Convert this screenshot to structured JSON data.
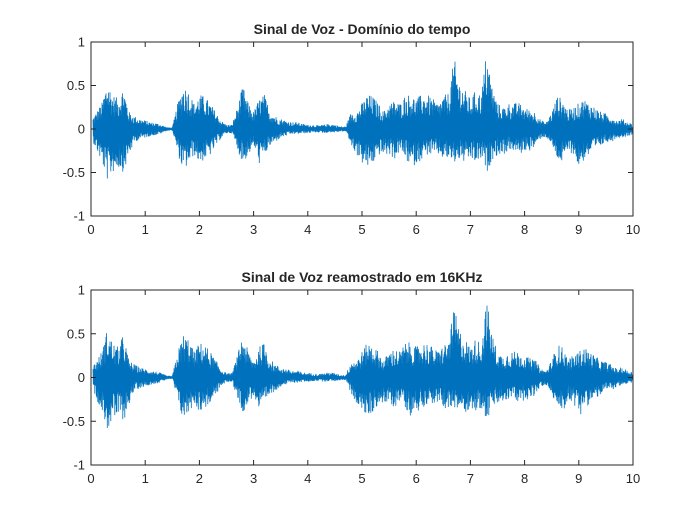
{
  "chart_data": [
    {
      "type": "line",
      "title": "Sinal de Voz - Domínio do tempo",
      "xlabel": "",
      "ylabel": "",
      "xlim": [
        0,
        10
      ],
      "ylim": [
        -1,
        1
      ],
      "xticks": [
        "0",
        "1",
        "2",
        "3",
        "4",
        "5",
        "6",
        "7",
        "8",
        "9",
        "10"
      ],
      "yticks": [
        "1",
        "0.5",
        "0",
        "-0.5",
        "-1"
      ],
      "color": "#0072BD",
      "grid": false,
      "series": [
        {
          "x": [
            0,
            0.1,
            0.2,
            0.3,
            0.4,
            0.5,
            0.6,
            0.7,
            0.8,
            0.9,
            1.0,
            1.1,
            1.2,
            1.3,
            1.4,
            1.5,
            1.6,
            1.7,
            1.8,
            1.9,
            2.0,
            2.1,
            2.2,
            2.3,
            2.4,
            2.5,
            2.6,
            2.7,
            2.8,
            2.9,
            3.0,
            3.1,
            3.2,
            3.3,
            3.4,
            3.5,
            3.6,
            3.7,
            3.8,
            3.9,
            4.0,
            4.1,
            4.2,
            4.3,
            4.4,
            4.5,
            4.6,
            4.7,
            4.8,
            4.9,
            5.0,
            5.1,
            5.2,
            5.3,
            5.4,
            5.5,
            5.6,
            5.7,
            5.8,
            5.9,
            6.0,
            6.1,
            6.2,
            6.3,
            6.4,
            6.5,
            6.6,
            6.7,
            6.8,
            6.9,
            7.0,
            7.1,
            7.2,
            7.3,
            7.4,
            7.5,
            7.6,
            7.7,
            7.8,
            7.9,
            8.0,
            8.1,
            8.2,
            8.3,
            8.4,
            8.5,
            8.6,
            8.7,
            8.8,
            8.9,
            9.0,
            9.1,
            9.2,
            9.3,
            9.4,
            9.5,
            9.6,
            9.7,
            9.8,
            9.9,
            10.0
          ],
          "upper": [
            0.1,
            0.2,
            0.3,
            0.57,
            0.4,
            0.35,
            0.5,
            0.2,
            0.15,
            0.12,
            0.1,
            0.08,
            0.07,
            0.05,
            0.02,
            0.02,
            0.3,
            0.52,
            0.45,
            0.3,
            0.4,
            0.38,
            0.3,
            0.2,
            0.1,
            0.05,
            0.05,
            0.25,
            0.5,
            0.3,
            0.2,
            0.35,
            0.4,
            0.22,
            0.15,
            0.12,
            0.1,
            0.08,
            0.08,
            0.06,
            0.05,
            0.05,
            0.04,
            0.05,
            0.06,
            0.05,
            0.03,
            0.03,
            0.2,
            0.2,
            0.3,
            0.4,
            0.38,
            0.3,
            0.2,
            0.3,
            0.33,
            0.3,
            0.4,
            0.4,
            0.35,
            0.4,
            0.4,
            0.35,
            0.3,
            0.38,
            0.42,
            0.82,
            0.55,
            0.45,
            0.35,
            0.45,
            0.4,
            0.92,
            0.5,
            0.3,
            0.25,
            0.3,
            0.3,
            0.3,
            0.25,
            0.22,
            0.2,
            0.1,
            0.08,
            0.2,
            0.38,
            0.35,
            0.22,
            0.25,
            0.3,
            0.35,
            0.3,
            0.25,
            0.2,
            0.18,
            0.15,
            0.1,
            0.12,
            0.08,
            0.06
          ],
          "lower": [
            -0.1,
            -0.25,
            -0.4,
            -0.6,
            -0.5,
            -0.45,
            -0.5,
            -0.3,
            -0.15,
            -0.12,
            -0.1,
            -0.08,
            -0.07,
            -0.05,
            -0.02,
            -0.02,
            -0.3,
            -0.5,
            -0.4,
            -0.3,
            -0.4,
            -0.35,
            -0.3,
            -0.2,
            -0.1,
            -0.05,
            -0.05,
            -0.25,
            -0.4,
            -0.3,
            -0.2,
            -0.4,
            -0.3,
            -0.2,
            -0.15,
            -0.1,
            -0.08,
            -0.06,
            -0.06,
            -0.05,
            -0.05,
            -0.04,
            -0.04,
            -0.05,
            -0.04,
            -0.04,
            -0.03,
            -0.03,
            -0.2,
            -0.3,
            -0.4,
            -0.45,
            -0.4,
            -0.3,
            -0.3,
            -0.3,
            -0.35,
            -0.25,
            -0.35,
            -0.45,
            -0.4,
            -0.35,
            -0.3,
            -0.3,
            -0.3,
            -0.35,
            -0.35,
            -0.4,
            -0.35,
            -0.4,
            -0.35,
            -0.4,
            -0.35,
            -0.5,
            -0.35,
            -0.3,
            -0.3,
            -0.25,
            -0.25,
            -0.3,
            -0.25,
            -0.25,
            -0.2,
            -0.1,
            -0.1,
            -0.2,
            -0.35,
            -0.4,
            -0.25,
            -0.3,
            -0.45,
            -0.35,
            -0.3,
            -0.25,
            -0.2,
            -0.15,
            -0.15,
            -0.1,
            -0.1,
            -0.08,
            -0.06
          ]
        }
      ]
    },
    {
      "type": "line",
      "title": "Sinal de Voz reamostrado em 16KHz",
      "xlabel": "",
      "ylabel": "",
      "xlim": [
        0,
        10
      ],
      "ylim": [
        -1,
        1
      ],
      "xticks": [
        "0",
        "1",
        "2",
        "3",
        "4",
        "5",
        "6",
        "7",
        "8",
        "9",
        "10"
      ],
      "yticks": [
        "1",
        "0.5",
        "0",
        "-0.5",
        "-1"
      ],
      "color": "#0072BD",
      "grid": false,
      "series": [
        {
          "x": [
            0,
            0.1,
            0.2,
            0.3,
            0.4,
            0.5,
            0.6,
            0.7,
            0.8,
            0.9,
            1.0,
            1.1,
            1.2,
            1.3,
            1.4,
            1.5,
            1.6,
            1.7,
            1.8,
            1.9,
            2.0,
            2.1,
            2.2,
            2.3,
            2.4,
            2.5,
            2.6,
            2.7,
            2.8,
            2.9,
            3.0,
            3.1,
            3.2,
            3.3,
            3.4,
            3.5,
            3.6,
            3.7,
            3.8,
            3.9,
            4.0,
            4.1,
            4.2,
            4.3,
            4.4,
            4.5,
            4.6,
            4.7,
            4.8,
            4.9,
            5.0,
            5.1,
            5.2,
            5.3,
            5.4,
            5.5,
            5.6,
            5.7,
            5.8,
            5.9,
            6.0,
            6.1,
            6.2,
            6.3,
            6.4,
            6.5,
            6.6,
            6.7,
            6.8,
            6.9,
            7.0,
            7.1,
            7.2,
            7.3,
            7.4,
            7.5,
            7.6,
            7.7,
            7.8,
            7.9,
            8.0,
            8.1,
            8.2,
            8.3,
            8.4,
            8.5,
            8.6,
            8.7,
            8.8,
            8.9,
            9.0,
            9.1,
            9.2,
            9.3,
            9.4,
            9.5,
            9.6,
            9.7,
            9.8,
            9.9,
            10.0
          ],
          "upper": [
            0.1,
            0.2,
            0.3,
            0.56,
            0.4,
            0.35,
            0.5,
            0.2,
            0.15,
            0.12,
            0.1,
            0.08,
            0.07,
            0.05,
            0.02,
            0.02,
            0.3,
            0.5,
            0.45,
            0.3,
            0.4,
            0.38,
            0.3,
            0.2,
            0.1,
            0.05,
            0.05,
            0.25,
            0.5,
            0.3,
            0.2,
            0.35,
            0.4,
            0.22,
            0.15,
            0.12,
            0.1,
            0.08,
            0.08,
            0.06,
            0.05,
            0.05,
            0.04,
            0.05,
            0.06,
            0.05,
            0.03,
            0.03,
            0.2,
            0.2,
            0.3,
            0.4,
            0.38,
            0.3,
            0.2,
            0.3,
            0.33,
            0.3,
            0.4,
            0.4,
            0.35,
            0.4,
            0.4,
            0.35,
            0.3,
            0.38,
            0.42,
            0.8,
            0.55,
            0.45,
            0.35,
            0.45,
            0.4,
            0.9,
            0.5,
            0.3,
            0.25,
            0.3,
            0.3,
            0.3,
            0.25,
            0.22,
            0.2,
            0.1,
            0.08,
            0.2,
            0.38,
            0.35,
            0.22,
            0.25,
            0.3,
            0.35,
            0.3,
            0.25,
            0.2,
            0.18,
            0.15,
            0.1,
            0.12,
            0.08,
            0.06
          ],
          "lower": [
            -0.1,
            -0.25,
            -0.4,
            -0.6,
            -0.5,
            -0.45,
            -0.5,
            -0.3,
            -0.15,
            -0.12,
            -0.1,
            -0.08,
            -0.07,
            -0.05,
            -0.02,
            -0.02,
            -0.3,
            -0.5,
            -0.4,
            -0.3,
            -0.4,
            -0.35,
            -0.3,
            -0.2,
            -0.1,
            -0.05,
            -0.05,
            -0.25,
            -0.4,
            -0.3,
            -0.2,
            -0.4,
            -0.3,
            -0.2,
            -0.15,
            -0.1,
            -0.08,
            -0.06,
            -0.06,
            -0.05,
            -0.05,
            -0.04,
            -0.04,
            -0.05,
            -0.04,
            -0.04,
            -0.03,
            -0.03,
            -0.2,
            -0.3,
            -0.4,
            -0.45,
            -0.4,
            -0.3,
            -0.3,
            -0.3,
            -0.35,
            -0.25,
            -0.35,
            -0.45,
            -0.4,
            -0.35,
            -0.3,
            -0.3,
            -0.3,
            -0.35,
            -0.35,
            -0.4,
            -0.35,
            -0.4,
            -0.35,
            -0.4,
            -0.35,
            -0.5,
            -0.35,
            -0.3,
            -0.3,
            -0.25,
            -0.25,
            -0.3,
            -0.25,
            -0.25,
            -0.2,
            -0.1,
            -0.1,
            -0.2,
            -0.35,
            -0.4,
            -0.25,
            -0.3,
            -0.45,
            -0.35,
            -0.3,
            -0.25,
            -0.2,
            -0.15,
            -0.15,
            -0.1,
            -0.1,
            -0.08,
            -0.06
          ]
        }
      ]
    }
  ]
}
